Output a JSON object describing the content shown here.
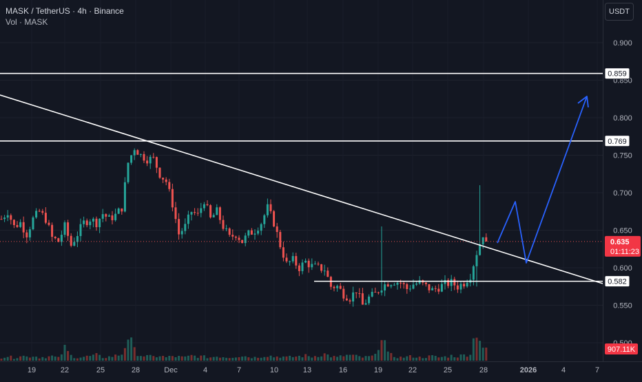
{
  "header": {
    "title": "MASK / TetherUS · 4h · Binance",
    "volume_label": "Vol · MASK"
  },
  "currency_button": "USDT",
  "colors": {
    "background": "#131722",
    "up": "#26a69a",
    "down": "#ef5350",
    "annotation": "#ffffff",
    "projection": "#2962ff"
  },
  "price_axis": {
    "ticks": [
      "0.900",
      "0.850",
      "0.800",
      "0.750",
      "0.700",
      "0.650",
      "0.600",
      "0.550",
      "0.500"
    ]
  },
  "time_axis": {
    "labels": [
      "19",
      "22",
      "25",
      "28",
      "Dec",
      "4",
      "7",
      "10",
      "13",
      "16",
      "19",
      "22",
      "25",
      "28",
      "2026",
      "4",
      "7"
    ]
  },
  "level_labels": [
    "0.859",
    "0.769",
    "0.582"
  ],
  "current_price": {
    "value": "0.635",
    "countdown": "01:11:23"
  },
  "volume_badge": "907.11K",
  "chart_data": {
    "type": "candlestick",
    "symbol": "MASK / TetherUS",
    "interval": "4h",
    "exchange": "Binance",
    "y_range": [
      0.49,
      0.94
    ],
    "horizontal_levels": [
      0.859,
      0.769,
      0.582
    ],
    "last_price": 0.635,
    "close_series": [
      [
        0,
        0.665
      ],
      [
        2,
        0.675
      ],
      [
        4,
        0.655
      ],
      [
        6,
        0.66
      ],
      [
        8,
        0.645
      ],
      [
        10,
        0.665
      ],
      [
        12,
        0.675
      ],
      [
        14,
        0.665
      ],
      [
        16,
        0.64
      ],
      [
        18,
        0.635
      ],
      [
        20,
        0.655
      ],
      [
        22,
        0.63
      ],
      [
        24,
        0.645
      ],
      [
        26,
        0.66
      ],
      [
        28,
        0.665
      ],
      [
        30,
        0.66
      ],
      [
        32,
        0.672
      ],
      [
        34,
        0.665
      ],
      [
        36,
        0.67
      ],
      [
        38,
        0.68
      ],
      [
        40,
        0.74
      ],
      [
        42,
        0.76
      ],
      [
        44,
        0.75
      ],
      [
        46,
        0.745
      ],
      [
        48,
        0.745
      ],
      [
        50,
        0.725
      ],
      [
        52,
        0.715
      ],
      [
        54,
        0.685
      ],
      [
        56,
        0.645
      ],
      [
        58,
        0.655
      ],
      [
        60,
        0.675
      ],
      [
        62,
        0.67
      ],
      [
        64,
        0.69
      ],
      [
        66,
        0.665
      ],
      [
        68,
        0.675
      ],
      [
        70,
        0.655
      ],
      [
        72,
        0.64
      ],
      [
        74,
        0.645
      ],
      [
        76,
        0.635
      ],
      [
        78,
        0.645
      ],
      [
        80,
        0.65
      ],
      [
        82,
        0.66
      ],
      [
        84,
        0.68
      ],
      [
        86,
        0.66
      ],
      [
        88,
        0.63
      ],
      [
        90,
        0.605
      ],
      [
        92,
        0.61
      ],
      [
        94,
        0.6
      ],
      [
        96,
        0.608
      ],
      [
        98,
        0.602
      ],
      [
        100,
        0.6
      ],
      [
        102,
        0.598
      ],
      [
        104,
        0.575
      ],
      [
        106,
        0.575
      ],
      [
        108,
        0.565
      ],
      [
        110,
        0.56
      ],
      [
        112,
        0.57
      ],
      [
        114,
        0.55
      ],
      [
        116,
        0.56
      ],
      [
        118,
        0.565
      ],
      [
        120,
        0.575
      ],
      [
        122,
        0.58
      ],
      [
        124,
        0.582
      ],
      [
        126,
        0.58
      ],
      [
        128,
        0.572
      ],
      [
        130,
        0.578
      ],
      [
        132,
        0.58
      ],
      [
        134,
        0.575
      ],
      [
        136,
        0.57
      ],
      [
        138,
        0.574
      ],
      [
        140,
        0.578
      ],
      [
        142,
        0.58
      ],
      [
        144,
        0.575
      ],
      [
        146,
        0.58
      ],
      [
        148,
        0.59
      ],
      [
        150,
        0.62
      ],
      [
        152,
        0.645
      ],
      [
        153,
        0.635
      ]
    ],
    "volume_series": [
      [
        0,
        6
      ],
      [
        2,
        8
      ],
      [
        4,
        5
      ],
      [
        6,
        10
      ],
      [
        8,
        7
      ],
      [
        10,
        9
      ],
      [
        12,
        6
      ],
      [
        14,
        7
      ],
      [
        16,
        8
      ],
      [
        18,
        5
      ],
      [
        20,
        22
      ],
      [
        22,
        9
      ],
      [
        24,
        6
      ],
      [
        26,
        7
      ],
      [
        28,
        8
      ],
      [
        30,
        10
      ],
      [
        32,
        6
      ],
      [
        34,
        7
      ],
      [
        36,
        9
      ],
      [
        38,
        12
      ],
      [
        40,
        45
      ],
      [
        42,
        18
      ],
      [
        44,
        10
      ],
      [
        46,
        8
      ],
      [
        48,
        7
      ],
      [
        50,
        9
      ],
      [
        52,
        6
      ],
      [
        54,
        8
      ],
      [
        56,
        7
      ],
      [
        58,
        6
      ],
      [
        60,
        9
      ],
      [
        62,
        8
      ],
      [
        64,
        7
      ],
      [
        66,
        6
      ],
      [
        68,
        8
      ],
      [
        70,
        7
      ],
      [
        72,
        6
      ],
      [
        74,
        8
      ],
      [
        76,
        9
      ],
      [
        78,
        7
      ],
      [
        80,
        6
      ],
      [
        82,
        8
      ],
      [
        84,
        10
      ],
      [
        86,
        7
      ],
      [
        88,
        8
      ],
      [
        90,
        6
      ],
      [
        92,
        7
      ],
      [
        94,
        8
      ],
      [
        96,
        9
      ],
      [
        98,
        7
      ],
      [
        100,
        10
      ],
      [
        102,
        12
      ],
      [
        104,
        8
      ],
      [
        106,
        6
      ],
      [
        108,
        9
      ],
      [
        110,
        10
      ],
      [
        112,
        8
      ],
      [
        114,
        6
      ],
      [
        116,
        7
      ],
      [
        118,
        9
      ],
      [
        120,
        55
      ],
      [
        122,
        12
      ],
      [
        124,
        8
      ],
      [
        126,
        6
      ],
      [
        128,
        7
      ],
      [
        130,
        8
      ],
      [
        132,
        6
      ],
      [
        134,
        7
      ],
      [
        136,
        8
      ],
      [
        138,
        6
      ],
      [
        140,
        7
      ],
      [
        142,
        9
      ],
      [
        144,
        8
      ],
      [
        146,
        10
      ],
      [
        148,
        14
      ],
      [
        150,
        60
      ],
      [
        152,
        25
      ],
      [
        153,
        18
      ]
    ]
  }
}
